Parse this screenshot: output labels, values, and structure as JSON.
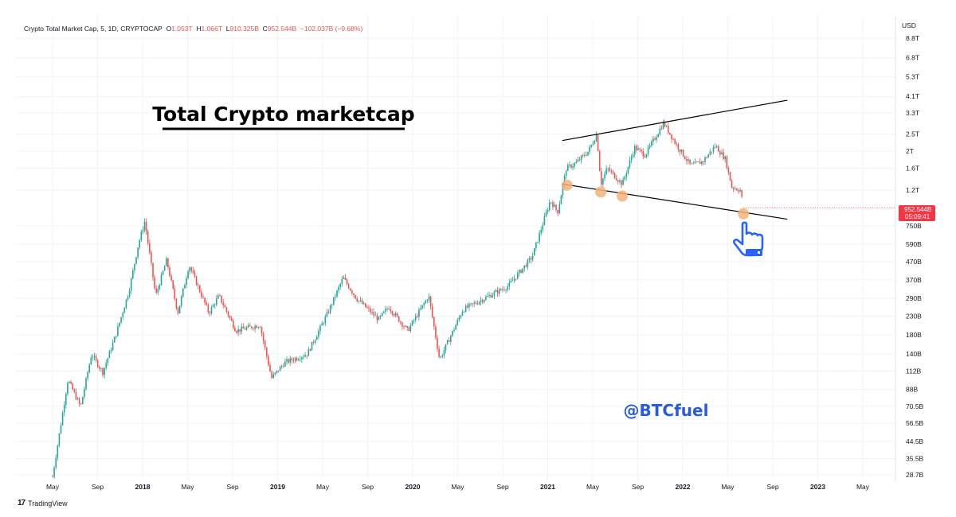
{
  "header": {
    "symbol": "Crypto Total Market Cap, 5, 1D, CRYPTOCAP",
    "open_label": "O",
    "open": "1.053T",
    "high_label": "H",
    "high": "1.066T",
    "low_label": "L",
    "low": "910.325B",
    "close_label": "C",
    "close": "952.544B",
    "change": "−102.037B (−9.68%)"
  },
  "branding": {
    "name": "TradingView",
    "logo": "17"
  },
  "annotations": {
    "title": "Total Crypto marketcap",
    "watermark": "@BTCfuel"
  },
  "price_badge": {
    "value": "952.544B",
    "countdown": "05:09:41"
  },
  "colors": {
    "up": "#26a69a",
    "down": "#ef5350",
    "badge": "#f23645",
    "marker": "#f5b27a",
    "watermark": "#2a5bd7",
    "hand": "#2962ff"
  },
  "chart_data": {
    "type": "candlestick",
    "title": "Crypto Total Market Cap, 5, 1D, CRYPTOCAP",
    "y_scale": "log",
    "y_unit": "USD",
    "ylim": [
      "25B",
      "11T"
    ],
    "xlim": [
      "2017-05",
      "2023-07"
    ],
    "x_ticks": [
      "May",
      "Sep",
      "2018",
      "May",
      "Sep",
      "2019",
      "May",
      "Sep",
      "2020",
      "May",
      "Sep",
      "2021",
      "May",
      "Sep",
      "2022",
      "May",
      "Sep",
      "2023",
      "May"
    ],
    "y_ticks": [
      "8.8T",
      "6.8T",
      "5.3T",
      "4.1T",
      "3.3T",
      "2.5T",
      "2T",
      "1.6T",
      "1.2T",
      "750B",
      "590B",
      "470B",
      "370B",
      "290B",
      "230B",
      "180B",
      "140B",
      "112B",
      "88B",
      "70.5B",
      "56.5B",
      "44.5B",
      "35.5B",
      "28.7B"
    ],
    "y_tick_values_billions": [
      8800,
      6800,
      5300,
      4100,
      3300,
      2500,
      2000,
      1600,
      1200,
      750,
      590,
      470,
      370,
      290,
      230,
      180,
      140,
      112,
      88,
      70.5,
      56.5,
      44.5,
      35.5,
      28.7
    ],
    "approx_close_path": [
      {
        "date": "2017-05-01",
        "value_b": 28
      },
      {
        "date": "2017-06-12",
        "value_b": 100
      },
      {
        "date": "2017-07-16",
        "value_b": 70
      },
      {
        "date": "2017-08-15",
        "value_b": 140
      },
      {
        "date": "2017-09-15",
        "value_b": 110
      },
      {
        "date": "2017-10-20",
        "value_b": 180
      },
      {
        "date": "2017-11-25",
        "value_b": 320
      },
      {
        "date": "2017-12-20",
        "value_b": 590
      },
      {
        "date": "2018-01-07",
        "value_b": 800
      },
      {
        "date": "2018-02-06",
        "value_b": 300
      },
      {
        "date": "2018-03-05",
        "value_b": 480
      },
      {
        "date": "2018-04-05",
        "value_b": 240
      },
      {
        "date": "2018-05-05",
        "value_b": 450
      },
      {
        "date": "2018-06-28",
        "value_b": 240
      },
      {
        "date": "2018-07-25",
        "value_b": 300
      },
      {
        "date": "2018-09-10",
        "value_b": 190
      },
      {
        "date": "2018-11-14",
        "value_b": 205
      },
      {
        "date": "2018-12-15",
        "value_b": 102
      },
      {
        "date": "2019-01-20",
        "value_b": 125
      },
      {
        "date": "2019-03-20",
        "value_b": 140
      },
      {
        "date": "2019-05-15",
        "value_b": 240
      },
      {
        "date": "2019-06-26",
        "value_b": 380
      },
      {
        "date": "2019-08-01",
        "value_b": 290
      },
      {
        "date": "2019-10-01",
        "value_b": 220
      },
      {
        "date": "2019-10-27",
        "value_b": 260
      },
      {
        "date": "2019-12-18",
        "value_b": 190
      },
      {
        "date": "2020-02-14",
        "value_b": 300
      },
      {
        "date": "2020-03-13",
        "value_b": 130
      },
      {
        "date": "2020-05-15",
        "value_b": 250
      },
      {
        "date": "2020-07-25",
        "value_b": 300
      },
      {
        "date": "2020-09-15",
        "value_b": 340
      },
      {
        "date": "2020-11-20",
        "value_b": 500
      },
      {
        "date": "2021-01-08",
        "value_b": 1050
      },
      {
        "date": "2021-01-28",
        "value_b": 900
      },
      {
        "date": "2021-02-21",
        "value_b": 1600
      },
      {
        "date": "2021-03-15",
        "value_b": 1700
      },
      {
        "date": "2021-04-20",
        "value_b": 2000
      },
      {
        "date": "2021-05-12",
        "value_b": 2500
      },
      {
        "date": "2021-05-23",
        "value_b": 1300
      },
      {
        "date": "2021-06-10",
        "value_b": 1600
      },
      {
        "date": "2021-07-20",
        "value_b": 1300
      },
      {
        "date": "2021-08-23",
        "value_b": 2100
      },
      {
        "date": "2021-09-21",
        "value_b": 1900
      },
      {
        "date": "2021-11-10",
        "value_b": 2900
      },
      {
        "date": "2021-12-10",
        "value_b": 2250
      },
      {
        "date": "2022-01-23",
        "value_b": 1650
      },
      {
        "date": "2022-02-25",
        "value_b": 1750
      },
      {
        "date": "2022-03-29",
        "value_b": 2150
      },
      {
        "date": "2022-04-25",
        "value_b": 1800
      },
      {
        "date": "2022-05-12",
        "value_b": 1250
      },
      {
        "date": "2022-06-05",
        "value_b": 1200
      },
      {
        "date": "2022-06-13",
        "value_b": 952.544
      }
    ],
    "trendlines": [
      {
        "name": "upper",
        "from": {
          "date": "2021-02-10",
          "value_b": 2300
        },
        "to": {
          "date": "2022-10-10",
          "value_b": 3900
        }
      },
      {
        "name": "lower",
        "from": {
          "date": "2021-02-10",
          "value_b": 1300
        },
        "to": {
          "date": "2022-10-10",
          "value_b": 820
        }
      }
    ],
    "touch_points": [
      {
        "date": "2021-02-23",
        "value_b": 1280
      },
      {
        "date": "2021-05-23",
        "value_b": 1170
      },
      {
        "date": "2021-07-20",
        "value_b": 1110
      },
      {
        "date": "2022-06-13",
        "value_b": 880
      }
    ],
    "last_price": 952.544,
    "grid": true,
    "legend": "none"
  }
}
